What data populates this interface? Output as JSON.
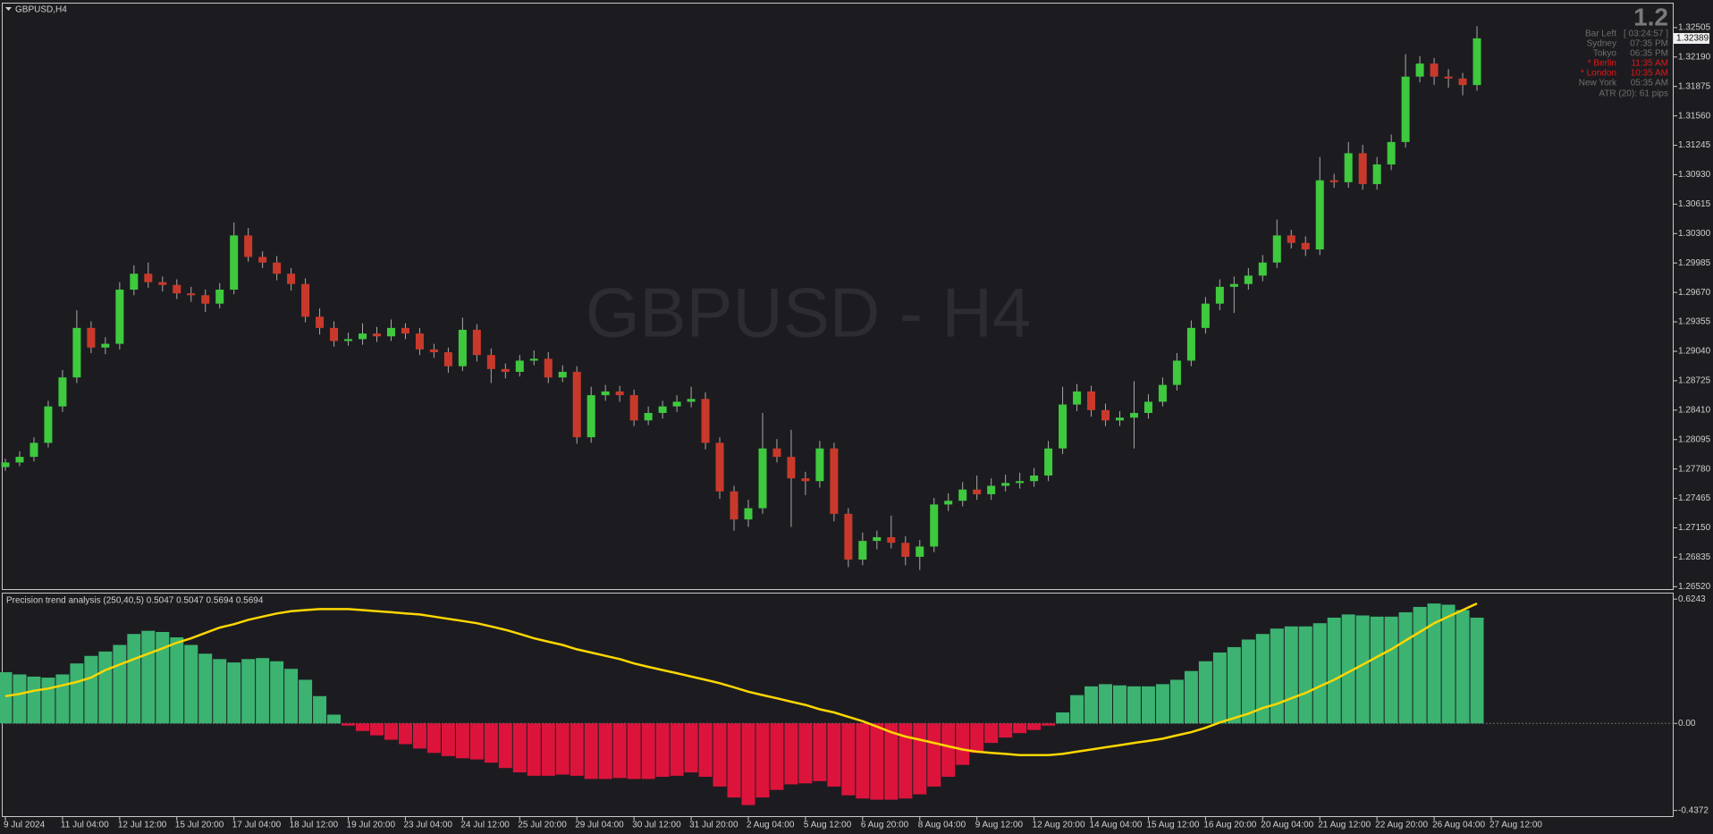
{
  "header": {
    "symbol": "GBPUSD,H4",
    "watermark": "GBPUSD - H4",
    "corner_value": "1.2",
    "info": [
      {
        "label": "Bar Left",
        "value": "[ 03:24:57 ]",
        "color": "#6e6e6e"
      },
      {
        "label": "Sydney",
        "value": "07:35 PM",
        "color": "#6e6e6e"
      },
      {
        "label": "Tokyo",
        "value": "06:35 PM",
        "color": "#6e6e6e"
      },
      {
        "label": "* Berlin",
        "value": "11:35 AM",
        "color": "#e01818"
      },
      {
        "label": "* London",
        "value": "10:35 AM",
        "color": "#e01818"
      },
      {
        "label": "New York",
        "value": "05:35 AM",
        "color": "#6e6e6e"
      }
    ],
    "atr": "ATR (20): 61 pips"
  },
  "chart_data": [
    {
      "type": "candlestick",
      "up_color": "#3ec93e",
      "down_color": "#c9392b",
      "wick_color": "#a8a8a8",
      "xlim": [
        0,
        104
      ],
      "ylim": [
        1.26485,
        1.32762
      ],
      "yticks": [
        1.32505,
        {
          "value": 1.3219,
          "label": "1.32190"
        },
        1.31875,
        {
          "value": 1.3156,
          "label": "1.31560"
        },
        1.31245,
        {
          "value": 1.3093,
          "label": "1.30930"
        },
        1.30615,
        {
          "value": 1.303,
          "label": "1.30300"
        },
        1.29985,
        {
          "value": 1.2967,
          "label": "1.29670"
        },
        1.29355,
        {
          "value": 1.2904,
          "label": "1.29040"
        },
        1.28725,
        {
          "value": 1.2841,
          "label": "1.28410"
        },
        1.28095,
        {
          "value": 1.2778,
          "label": "1.27780"
        },
        1.27465,
        {
          "value": 1.2715,
          "label": "1.27150"
        },
        1.26835,
        {
          "value": 1.2652,
          "label": "1.26520"
        }
      ],
      "last_price": 1.32389,
      "xticks": [
        {
          "value": 0,
          "label": "9 Jul 2024"
        },
        {
          "value": 4,
          "label": "11 Jul 04:00"
        },
        {
          "value": 8,
          "label": "12 Jul 12:00"
        },
        {
          "value": 12,
          "label": "15 Jul 20:00"
        },
        {
          "value": 16,
          "label": "17 Jul 04:00"
        },
        {
          "value": 20,
          "label": "18 Jul 12:00"
        },
        {
          "value": 24,
          "label": "19 Jul 20:00"
        },
        {
          "value": 28,
          "label": "23 Jul 04:00"
        },
        {
          "value": 32,
          "label": "24 Jul 12:00"
        },
        {
          "value": 36,
          "label": "25 Jul 20:00"
        },
        {
          "value": 40,
          "label": "29 Jul 04:00"
        },
        {
          "value": 44,
          "label": "30 Jul 12:00"
        },
        {
          "value": 48,
          "label": "31 Jul 20:00"
        },
        {
          "value": 52,
          "label": "2 Aug 04:00"
        },
        {
          "value": 56,
          "label": "5 Aug 12:00"
        },
        {
          "value": 60,
          "label": "6 Aug 20:00"
        },
        {
          "value": 64,
          "label": "8 Aug 04:00"
        },
        {
          "value": 68,
          "label": "9 Aug 12:00"
        },
        {
          "value": 72,
          "label": "12 Aug 20:00"
        },
        {
          "value": 76,
          "label": "14 Aug 04:00"
        },
        {
          "value": 80,
          "label": "15 Aug 12:00"
        },
        {
          "value": 84,
          "label": "16 Aug 20:00"
        },
        {
          "value": 88,
          "label": "20 Aug 04:00"
        },
        {
          "value": 92,
          "label": "21 Aug 12:00"
        },
        {
          "value": 96,
          "label": "22 Aug 20:00"
        },
        {
          "value": 100,
          "label": "26 Aug 04:00"
        },
        {
          "value": 104,
          "label": "27 Aug 12:00"
        }
      ],
      "ohlc": [
        [
          1.278,
          1.2789,
          1.2776,
          1.2785
        ],
        [
          1.2785,
          1.2797,
          1.2781,
          1.2791
        ],
        [
          1.2791,
          1.2812,
          1.2786,
          1.2806
        ],
        [
          1.2806,
          1.2851,
          1.2801,
          1.2845
        ],
        [
          1.2845,
          1.2884,
          1.2839,
          1.2876
        ],
        [
          1.2876,
          1.2948,
          1.287,
          1.2929
        ],
        [
          1.2929,
          1.2936,
          1.2902,
          1.2908
        ],
        [
          1.2908,
          1.2919,
          1.2901,
          1.2912
        ],
        [
          1.2912,
          1.2978,
          1.2906,
          1.297
        ],
        [
          1.297,
          1.2996,
          1.2964,
          1.2987
        ],
        [
          1.2987,
          1.2999,
          1.2972,
          1.2978
        ],
        [
          1.2978,
          1.2984,
          1.2968,
          1.2975
        ],
        [
          1.2975,
          1.2981,
          1.296,
          1.2966
        ],
        [
          1.2966,
          1.2973,
          1.2957,
          1.2964
        ],
        [
          1.2964,
          1.297,
          1.2946,
          1.2955
        ],
        [
          1.2955,
          1.2977,
          1.295,
          1.297
        ],
        [
          1.297,
          1.3042,
          1.2965,
          1.3028
        ],
        [
          1.3028,
          1.3036,
          1.3,
          1.3005
        ],
        [
          1.3005,
          1.3011,
          1.2993,
          1.2999
        ],
        [
          1.2999,
          1.3006,
          1.298,
          1.2987
        ],
        [
          1.2987,
          1.2993,
          1.2969,
          1.2976
        ],
        [
          1.2976,
          1.2982,
          1.2935,
          1.2941
        ],
        [
          1.2941,
          1.295,
          1.2922,
          1.2929
        ],
        [
          1.2929,
          1.2936,
          1.2909,
          1.2915
        ],
        [
          1.2915,
          1.2924,
          1.291,
          1.2917
        ],
        [
          1.2917,
          1.2934,
          1.2911,
          1.2923
        ],
        [
          1.2923,
          1.293,
          1.2914,
          1.292
        ],
        [
          1.292,
          1.2938,
          1.2915,
          1.2929
        ],
        [
          1.2929,
          1.2934,
          1.2917,
          1.2923
        ],
        [
          1.2923,
          1.2929,
          1.29,
          1.2906
        ],
        [
          1.2906,
          1.2912,
          1.2897,
          1.2903
        ],
        [
          1.2903,
          1.2908,
          1.2881,
          1.2888
        ],
        [
          1.2888,
          1.294,
          1.2883,
          1.2927
        ],
        [
          1.2927,
          1.2933,
          1.2893,
          1.29
        ],
        [
          1.29,
          1.2907,
          1.287,
          1.2885
        ],
        [
          1.2885,
          1.2891,
          1.2875,
          1.2882
        ],
        [
          1.2882,
          1.29,
          1.2877,
          1.2894
        ],
        [
          1.2894,
          1.2905,
          1.2889,
          1.2896
        ],
        [
          1.2896,
          1.2903,
          1.287,
          1.2876
        ],
        [
          1.2876,
          1.2889,
          1.2871,
          1.2882
        ],
        [
          1.2882,
          1.2888,
          1.2805,
          1.2812
        ],
        [
          1.2812,
          1.2866,
          1.2806,
          1.2857
        ],
        [
          1.2857,
          1.2868,
          1.2851,
          1.2861
        ],
        [
          1.2861,
          1.2867,
          1.285,
          1.2857
        ],
        [
          1.2857,
          1.2863,
          1.2824,
          1.283
        ],
        [
          1.283,
          1.2845,
          1.2825,
          1.2838
        ],
        [
          1.2838,
          1.2851,
          1.2832,
          1.2845
        ],
        [
          1.2845,
          1.2857,
          1.2839,
          1.285
        ],
        [
          1.285,
          1.2866,
          1.2844,
          1.2853
        ],
        [
          1.2853,
          1.286,
          1.2799,
          1.2806
        ],
        [
          1.2806,
          1.2812,
          1.2746,
          1.2754
        ],
        [
          1.2754,
          1.276,
          1.2712,
          1.2724
        ],
        [
          1.2724,
          1.2745,
          1.2716,
          1.2736
        ],
        [
          1.2736,
          1.2838,
          1.273,
          1.28
        ],
        [
          1.28,
          1.281,
          1.2785,
          1.2791
        ],
        [
          1.2791,
          1.282,
          1.2716,
          1.2768
        ],
        [
          1.2768,
          1.2775,
          1.275,
          1.2765
        ],
        [
          1.2765,
          1.2808,
          1.2758,
          1.28
        ],
        [
          1.28,
          1.2806,
          1.2722,
          1.273
        ],
        [
          1.273,
          1.2736,
          1.2673,
          1.2681
        ],
        [
          1.2681,
          1.271,
          1.2675,
          1.2701
        ],
        [
          1.2701,
          1.2712,
          1.2692,
          1.2705
        ],
        [
          1.2705,
          1.2728,
          1.2693,
          1.2699
        ],
        [
          1.2699,
          1.2706,
          1.2675,
          1.2684
        ],
        [
          1.2684,
          1.2702,
          1.267,
          1.2695
        ],
        [
          1.2695,
          1.2747,
          1.2689,
          1.274
        ],
        [
          1.274,
          1.2752,
          1.2733,
          1.2744
        ],
        [
          1.2744,
          1.2764,
          1.2738,
          1.2756
        ],
        [
          1.2756,
          1.2771,
          1.2745,
          1.2751
        ],
        [
          1.2751,
          1.2768,
          1.2745,
          1.276
        ],
        [
          1.276,
          1.2772,
          1.2754,
          1.2763
        ],
        [
          1.2763,
          1.2774,
          1.2757,
          1.2765
        ],
        [
          1.2765,
          1.2779,
          1.2759,
          1.2771
        ],
        [
          1.2771,
          1.2808,
          1.2765,
          1.28
        ],
        [
          1.28,
          1.2866,
          1.2794,
          1.2847
        ],
        [
          1.2847,
          1.2869,
          1.284,
          1.2861
        ],
        [
          1.2861,
          1.2867,
          1.2834,
          1.2841
        ],
        [
          1.2841,
          1.2848,
          1.2824,
          1.283
        ],
        [
          1.283,
          1.284,
          1.2824,
          1.2833
        ],
        [
          1.2833,
          1.2872,
          1.28,
          1.2838
        ],
        [
          1.2838,
          1.2858,
          1.2832,
          1.285
        ],
        [
          1.285,
          1.2876,
          1.2845,
          1.2868
        ],
        [
          1.2868,
          1.2902,
          1.2862,
          1.2894
        ],
        [
          1.2894,
          1.2937,
          1.2888,
          1.2929
        ],
        [
          1.2929,
          1.2962,
          1.2923,
          1.2955
        ],
        [
          1.2955,
          1.2981,
          1.2948,
          1.2973
        ],
        [
          1.2973,
          1.2984,
          1.2945,
          1.2976
        ],
        [
          1.2976,
          1.2993,
          1.297,
          1.2985
        ],
        [
          1.2985,
          1.3007,
          1.2979,
          1.2999
        ],
        [
          1.2999,
          1.3045,
          1.2993,
          1.3028
        ],
        [
          1.3028,
          1.3034,
          1.3014,
          1.302
        ],
        [
          1.302,
          1.3027,
          1.3006,
          1.3013
        ],
        [
          1.3013,
          1.3112,
          1.3007,
          1.3087
        ],
        [
          1.3087,
          1.3094,
          1.3079,
          1.3085
        ],
        [
          1.3085,
          1.3128,
          1.3079,
          1.3116
        ],
        [
          1.3116,
          1.3125,
          1.3077,
          1.3083
        ],
        [
          1.3083,
          1.3112,
          1.3077,
          1.3104
        ],
        [
          1.3104,
          1.3136,
          1.3098,
          1.3128
        ],
        [
          1.3128,
          1.3222,
          1.3122,
          1.3198
        ],
        [
          1.3198,
          1.322,
          1.3192,
          1.3212
        ],
        [
          1.3212,
          1.3218,
          1.3189,
          1.3198
        ],
        [
          1.3198,
          1.3206,
          1.3186,
          1.3196
        ],
        [
          1.3196,
          1.3202,
          1.3178,
          1.3189
        ],
        [
          1.3189,
          1.3252,
          1.3183,
          1.3239
        ]
      ]
    },
    {
      "type": "bar",
      "title": "Precision trend analysis (250,40,5) 0.5047 0.5047 0.5694 0.5694",
      "xlim": [
        0,
        104
      ],
      "ylim": [
        -0.47,
        0.652
      ],
      "yticks": [
        0.6243,
        {
          "value": 0,
          "label": "0.00"
        },
        -0.4372
      ],
      "series": [
        {
          "type": "bar",
          "up_color": "#3cb371",
          "down_color": "#dc143c",
          "values": [
            0.257,
            0.246,
            0.235,
            0.23,
            0.246,
            0.301,
            0.339,
            0.361,
            0.394,
            0.449,
            0.465,
            0.459,
            0.432,
            0.394,
            0.35,
            0.323,
            0.306,
            0.323,
            0.328,
            0.312,
            0.274,
            0.219,
            0.137,
            0.044,
            -0.011,
            -0.038,
            -0.06,
            -0.082,
            -0.104,
            -0.126,
            -0.148,
            -0.164,
            -0.175,
            -0.181,
            -0.197,
            -0.224,
            -0.246,
            -0.263,
            -0.263,
            -0.257,
            -0.263,
            -0.279,
            -0.279,
            -0.274,
            -0.279,
            -0.279,
            -0.268,
            -0.263,
            -0.246,
            -0.268,
            -0.317,
            -0.372,
            -0.41,
            -0.372,
            -0.334,
            -0.306,
            -0.301,
            -0.29,
            -0.317,
            -0.361,
            -0.377,
            -0.383,
            -0.383,
            -0.377,
            -0.356,
            -0.317,
            -0.268,
            -0.208,
            -0.148,
            -0.098,
            -0.071,
            -0.049,
            -0.033,
            -0.011,
            0.055,
            0.142,
            0.186,
            0.197,
            0.191,
            0.186,
            0.186,
            0.197,
            0.219,
            0.263,
            0.312,
            0.356,
            0.383,
            0.421,
            0.449,
            0.476,
            0.487,
            0.487,
            0.503,
            0.531,
            0.547,
            0.542,
            0.536,
            0.536,
            0.558,
            0.585,
            0.602,
            0.596,
            0.569,
            0.531
          ]
        },
        {
          "type": "line",
          "color": "#ffd700",
          "values": [
            0.137,
            0.148,
            0.164,
            0.175,
            0.191,
            0.208,
            0.23,
            0.268,
            0.295,
            0.323,
            0.35,
            0.377,
            0.405,
            0.427,
            0.454,
            0.481,
            0.498,
            0.52,
            0.536,
            0.552,
            0.563,
            0.569,
            0.574,
            0.574,
            0.574,
            0.569,
            0.563,
            0.558,
            0.552,
            0.547,
            0.536,
            0.525,
            0.514,
            0.503,
            0.487,
            0.47,
            0.449,
            0.427,
            0.41,
            0.394,
            0.372,
            0.356,
            0.339,
            0.323,
            0.301,
            0.284,
            0.268,
            0.252,
            0.235,
            0.219,
            0.202,
            0.181,
            0.159,
            0.142,
            0.126,
            0.109,
            0.093,
            0.071,
            0.055,
            0.033,
            0.011,
            -0.016,
            -0.044,
            -0.066,
            -0.082,
            -0.098,
            -0.115,
            -0.131,
            -0.142,
            -0.148,
            -0.153,
            -0.159,
            -0.159,
            -0.159,
            -0.153,
            -0.142,
            -0.131,
            -0.12,
            -0.109,
            -0.098,
            -0.088,
            -0.077,
            -0.06,
            -0.044,
            -0.022,
            0.005,
            0.027,
            0.049,
            0.077,
            0.098,
            0.126,
            0.153,
            0.186,
            0.219,
            0.257,
            0.295,
            0.334,
            0.372,
            0.416,
            0.459,
            0.503,
            0.536,
            0.569,
            0.602
          ]
        }
      ]
    }
  ]
}
